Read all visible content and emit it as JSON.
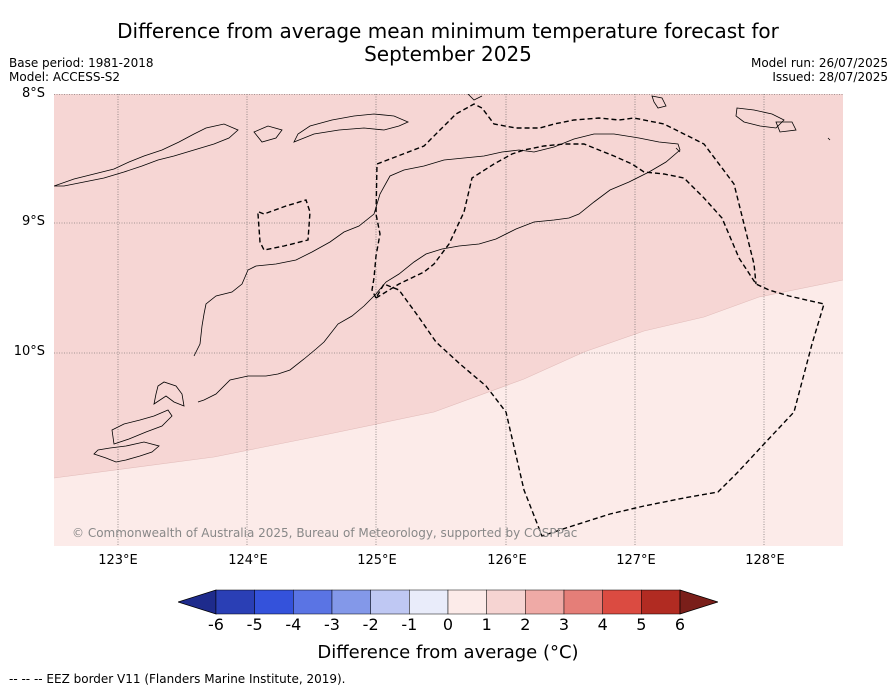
{
  "title_line1": "Difference from average mean minimum temperature forecast for",
  "title_line2": "September 2025",
  "base_period": "Base period: 1981-2018",
  "model": "Model: ACCESS-S2",
  "model_run": "Model run: 26/07/2025",
  "issued": "Issued: 28/07/2025",
  "lat_labels": [
    "8°S",
    "9°S",
    "10°S"
  ],
  "lon_labels": [
    "123°E",
    "124°E",
    "125°E",
    "126°E",
    "127°E",
    "128°E"
  ],
  "credit": "© Commonwealth of Australia 2025, Bureau of Meteorology, supported by COSPPac",
  "colorbar": {
    "ticks": [
      "-6",
      "-5",
      "-4",
      "-3",
      "-2",
      "-1",
      "0",
      "1",
      "2",
      "3",
      "4",
      "5",
      "6"
    ],
    "colors": [
      "#1e2b8c",
      "#2a3fb5",
      "#3452db",
      "#5a74e4",
      "#8398e9",
      "#bfc8f3",
      "#e9ecfa",
      "#fcebe9",
      "#f6d4d2",
      "#efaaa6",
      "#e57e78",
      "#db4b41",
      "#b12b22",
      "#7a1f1a"
    ],
    "label": "Difference from average (°C)"
  },
  "fill_colors": {
    "band_1_2": "#f6d6d4",
    "band_0_1": "#fcebe9"
  },
  "footer": "-- -- -- EEZ border V11 (Flanders Marine Institute, 2019)."
}
